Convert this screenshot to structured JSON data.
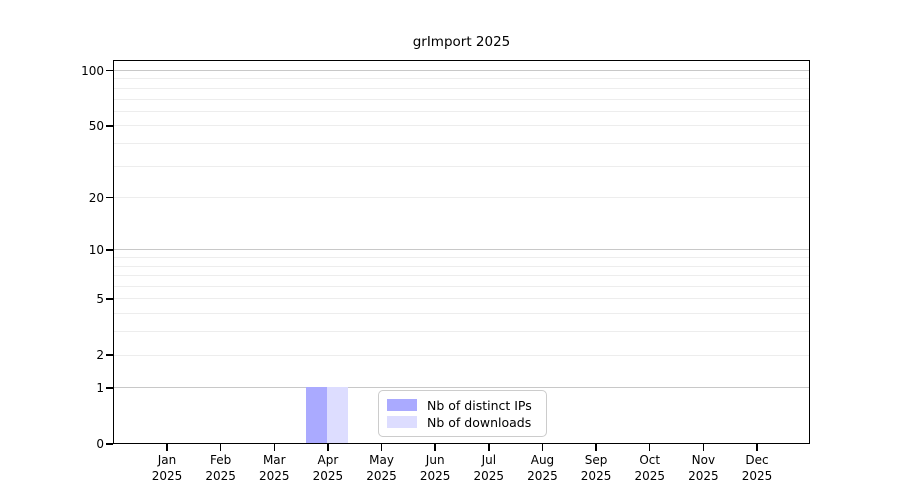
{
  "chart_data": {
    "type": "bar",
    "title": "grImport 2025",
    "categories": [
      "Jan",
      "Feb",
      "Mar",
      "Apr",
      "May",
      "Jun",
      "Jul",
      "Aug",
      "Sep",
      "Oct",
      "Nov",
      "Dec"
    ],
    "category_year": "2025",
    "series": [
      {
        "name": "Nb of distinct IPs",
        "color": "#aaaaff",
        "values": [
          0,
          0,
          0,
          1,
          0,
          0,
          0,
          0,
          0,
          0,
          0,
          0
        ]
      },
      {
        "name": "Nb of downloads",
        "color": "#ddddff",
        "values": [
          0,
          0,
          0,
          1,
          0,
          0,
          0,
          0,
          0,
          0,
          0,
          0
        ]
      }
    ],
    "xlabel": "",
    "ylabel": "",
    "yticks": [
      0,
      1,
      2,
      5,
      10,
      20,
      50,
      100
    ],
    "y_scale": "log1p",
    "ylim": [
      0,
      114
    ],
    "grid": true,
    "gridline_major_values": [
      1,
      10,
      100
    ],
    "legend_position": "bottom-center-inside",
    "colors": {
      "grid_major": "#c8c8c8",
      "grid_minor": "#ededed",
      "axis": "#000000",
      "legend_border": "#cccccc",
      "background": "#ffffff"
    }
  }
}
